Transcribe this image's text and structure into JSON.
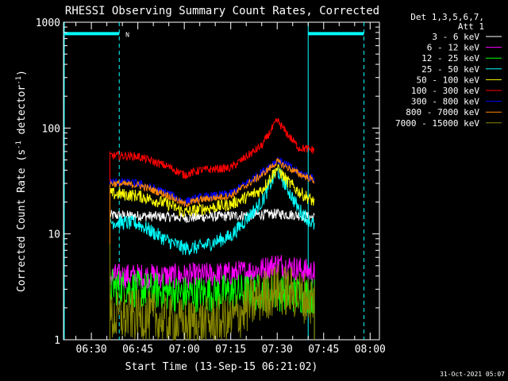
{
  "chart_data": {
    "type": "line",
    "title": "RHESSI Observing Summary Count Rates, Corrected",
    "xlabel": "Start Time (13-Sep-15 06:21:02)",
    "ylabel": "Corrected Count Rate (s",
    "ylabel_sup1": "-1",
    "ylabel_mid": " detector",
    "ylabel_sup2": "-1",
    "ylabel_end": ")",
    "yscale": "log",
    "ylim": [
      1,
      1000
    ],
    "xlim": [
      "06:21",
      "08:03"
    ],
    "xticks": [
      "06:30",
      "06:45",
      "07:00",
      "07:15",
      "07:30",
      "07:45",
      "08:00"
    ],
    "yticks": [
      {
        "value": 1,
        "label": "1"
      },
      {
        "value": 10,
        "label": "10"
      },
      {
        "value": 100,
        "label": "100"
      },
      {
        "value": 1000,
        "label": "1000"
      }
    ],
    "legend_header": [
      "Det 1,3,5,6,7,",
      "Att 1"
    ],
    "legend_position": "right",
    "timestamp": "31-Oct-2021 05:07",
    "night_bars": [
      {
        "start": "06:21",
        "end": "06:39",
        "level": 780,
        "color": "#00ffff"
      },
      {
        "start": "07:40",
        "end": "07:58",
        "level": 780,
        "color": "#00ffff"
      }
    ],
    "saa_marker": {
      "time": "06:40",
      "label": "N",
      "color": "#00ffff"
    },
    "solid_vlines": [
      {
        "time": "06:21",
        "color": "#00ffff"
      },
      {
        "time": "07:40",
        "color": "#00ffff"
      }
    ],
    "dashed_vlines": [
      {
        "time": "06:39",
        "color": "#00ffff"
      },
      {
        "time": "07:58",
        "color": "#00ffff"
      }
    ],
    "series": [
      {
        "name": "3 - 6 keV",
        "color": "#ffffff",
        "times": [
          "06:36",
          "06:45",
          "06:55",
          "07:00",
          "07:15",
          "07:30",
          "07:37",
          "07:42"
        ],
        "values": [
          15,
          14.8,
          14.5,
          14.2,
          14.8,
          15.5,
          15,
          14.2
        ],
        "noise": 0.05
      },
      {
        "name": "6 - 12 keV",
        "color": "#ff00ff",
        "times": [
          "06:36",
          "06:45",
          "07:00",
          "07:15",
          "07:25",
          "07:30",
          "07:35",
          "07:42"
        ],
        "values": [
          4,
          4,
          4,
          4.2,
          4.6,
          5.2,
          4.8,
          4.3
        ],
        "noise": 0.12,
        "start_spike": 6
      },
      {
        "name": "12 - 25 keV",
        "color": "#00ff00",
        "times": [
          "06:36",
          "06:45",
          "07:00",
          "07:15",
          "07:30",
          "07:42"
        ],
        "values": [
          3.2,
          3,
          2.7,
          2.8,
          2.8,
          2.6
        ],
        "noise": 0.18,
        "start_spike": 6
      },
      {
        "name": "25 - 50 keV",
        "color": "#00ffff",
        "times": [
          "06:36",
          "06:45",
          "06:55",
          "07:00",
          "07:05",
          "07:15",
          "07:25",
          "07:30",
          "07:33",
          "07:37",
          "07:42"
        ],
        "values": [
          13,
          12.5,
          8.5,
          7.3,
          7.5,
          9.5,
          20,
          40,
          28,
          17,
          12
        ],
        "noise": 0.07
      },
      {
        "name": "50 - 100 keV",
        "color": "#ffff00",
        "times": [
          "06:36",
          "06:45",
          "06:55",
          "07:00",
          "07:05",
          "07:15",
          "07:25",
          "07:30",
          "07:33",
          "07:37",
          "07:42"
        ],
        "values": [
          24,
          23,
          19,
          16,
          17,
          19,
          26,
          42,
          32,
          25,
          20
        ],
        "noise": 0.06
      },
      {
        "name": "100 - 300 keV",
        "color": "#ff0000",
        "times": [
          "06:36",
          "06:45",
          "06:55",
          "07:00",
          "07:05",
          "07:15",
          "07:25",
          "07:30",
          "07:33",
          "07:37",
          "07:42"
        ],
        "values": [
          55,
          54,
          43,
          36,
          40,
          42,
          68,
          118,
          90,
          65,
          62
        ],
        "noise": 0.04
      },
      {
        "name": "300 - 800 keV",
        "color": "#0000ff",
        "times": [
          "06:36",
          "06:45",
          "06:55",
          "07:00",
          "07:05",
          "07:15",
          "07:25",
          "07:30",
          "07:33",
          "07:37",
          "07:42"
        ],
        "values": [
          31,
          30,
          24,
          20,
          22,
          24,
          38,
          50,
          45,
          38,
          33
        ],
        "noise": 0.04
      },
      {
        "name": "800 - 7000 keV",
        "color": "#ff8800",
        "times": [
          "06:36",
          "06:45",
          "06:55",
          "07:00",
          "07:05",
          "07:15",
          "07:25",
          "07:30",
          "07:33",
          "07:37",
          "07:42"
        ],
        "values": [
          30,
          29,
          23,
          19,
          21,
          23,
          36,
          48,
          43,
          37,
          32
        ],
        "noise": 0.035
      },
      {
        "name": "7000 - 15000 keV",
        "color": "#888800",
        "times": [
          "06:36",
          "06:45",
          "07:00",
          "07:15",
          "07:20",
          "07:25",
          "07:30",
          "07:35",
          "07:42"
        ],
        "values": [
          1.6,
          1.7,
          1.4,
          1.5,
          2.0,
          2.6,
          3.0,
          2.8,
          2.3
        ],
        "noise": 0.25,
        "start_spike": 8
      }
    ]
  }
}
